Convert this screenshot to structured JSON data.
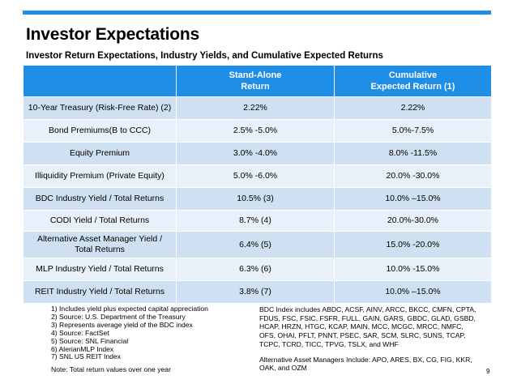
{
  "header": {
    "title": "Investor Expectations",
    "subtitle": "Investor Return Expectations, Industry Yields, and Cumulative Expected Returns"
  },
  "table": {
    "columns": [
      "",
      "Stand-Alone\nReturn",
      "Cumulative\nExpected Return (1)"
    ],
    "rows": [
      {
        "label": "10-Year Treasury (Risk-Free Rate) (2)",
        "standalone": "2.22%",
        "cumulative": "2.22%"
      },
      {
        "label": "Bond Premiums(B to CCC)",
        "standalone": "2.5% -5.0%",
        "cumulative": "5.0%-7.5%"
      },
      {
        "label": "Equity Premium",
        "standalone": "3.0% -4.0%",
        "cumulative": "8.0% -11.5%"
      },
      {
        "label": "Illiquidity Premium (Private Equity)",
        "standalone": "5.0% -6.0%",
        "cumulative": "20.0% -30.0%"
      },
      {
        "label": "BDC Industry Yield / Total Returns",
        "standalone": "10.5% (3)",
        "cumulative": "10.0% –15.0%"
      },
      {
        "label": "CODI Yield / Total Returns",
        "standalone": "8.7% (4)",
        "cumulative": "20.0%-30.0%"
      },
      {
        "label": "Alternative Asset Manager Yield /\nTotal Returns",
        "standalone": "6.4% (5)",
        "cumulative": "15.0% -20.0%"
      },
      {
        "label": "MLP Industry Yield / Total Returns",
        "standalone": "6.3% (6)",
        "cumulative": "10.0% -15.0%"
      },
      {
        "label": "REIT Industry Yield / Total Returns",
        "standalone": "3.8% (7)",
        "cumulative": "10.0% –15.0%"
      }
    ]
  },
  "footnotes": {
    "items": [
      "1)  Includes yield plus expected capital appreciation",
      "2)  Source: U.S. Department of the Treasury",
      "3)  Represents average yield of the BDC index",
      "4)  Source: FactSet",
      "5)  Source: SNL Financial",
      "6)  AlerianMLP Index",
      "7)  SNL US REIT Index"
    ],
    "total_note": "Note: Total return values over one year"
  },
  "right_notes": {
    "bdc_index": "BDC Index includes ABDC, ACSF, AINV, ARCC, BKCC, CMFN, CPTA, FDUS, FSC, FSIC, FSFR, FULL, GAIN, GARS, GBDC, GLAD, GSBD, HCAP, HRZN, HTGC, KCAP, MAIN, MCC, MCGC, MRCC, NMFC, OFS, OHAI, PFLT, PNNT, PSEC, SAR, SCM, SLRC, SUNS, TCAP, TCPC, TCRD, TICC, TPVG, TSLX, and WHF",
    "alt_managers": "Alternative Asset Managers Include: APO, ARES, BX, CG, FIG, KKR, OAK, and OZM"
  },
  "page_number": "9"
}
